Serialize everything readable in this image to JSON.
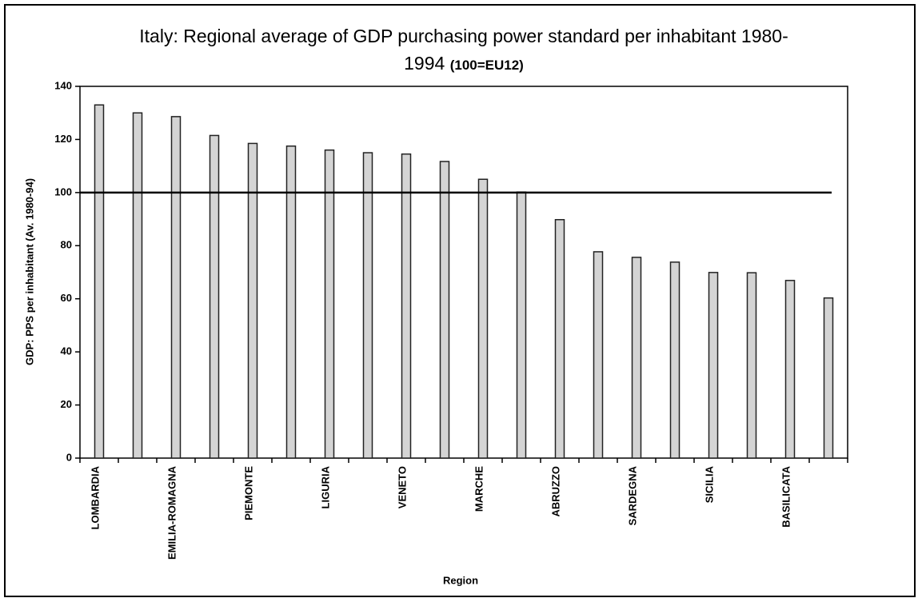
{
  "chart_data": {
    "type": "bar",
    "title": "Italy: Regional average of GDP purchasing power standard per inhabitant 1980-1994",
    "title_note": "(100=EU12)",
    "x_label": "Region",
    "y_label": "GDP: PPS per inhabitant (Av. 1980-94)",
    "categories": [
      "LOMBARDIA",
      null,
      "EMILIA-ROMAGNA",
      null,
      "PIEMONTE",
      null,
      "LIGURIA",
      null,
      "VENETO",
      null,
      "MARCHE",
      null,
      "ABRUZZO",
      null,
      "SARDEGNA",
      null,
      "SICILIA",
      null,
      "BASILICATA",
      null
    ],
    "values": [
      133,
      130,
      128.6,
      121.5,
      118.5,
      117.5,
      116,
      115,
      114.5,
      111.7,
      105,
      100.2,
      89.8,
      77.7,
      75.6,
      73.8,
      69.9,
      69.8,
      66.9,
      60.3
    ],
    "color": "#d4d4d4",
    "reference_line": 100,
    "ylim": [
      0,
      140
    ],
    "yticks": [
      0,
      20,
      40,
      60,
      80,
      100,
      120,
      140
    ],
    "grid": false
  }
}
